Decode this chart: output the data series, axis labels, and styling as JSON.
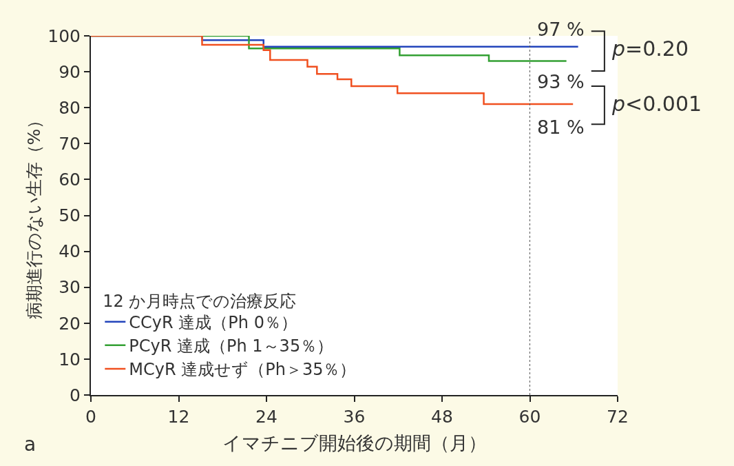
{
  "chart_data": {
    "type": "step",
    "xlabel": "イマチニブ開始後の期間（月）",
    "ylabel": "病期進行のない生存（%）",
    "legend_title": "12 か月時点での治療反応",
    "xlim": [
      0,
      72
    ],
    "xticks": [
      0,
      12,
      24,
      36,
      48,
      60,
      72
    ],
    "ylim": [
      0,
      100
    ],
    "yticks": [
      0,
      10,
      20,
      30,
      40,
      50,
      60,
      70,
      80,
      90,
      100
    ],
    "legend": "bottom left",
    "marker": "none",
    "line_style": "solid",
    "series": [
      {
        "name": "CCyR 達成（Ph 0％）",
        "color": "#2244bb",
        "x": [
          0,
          15.2,
          23.6,
          66.6
        ],
        "values": [
          100,
          98.8,
          97,
          97
        ]
      },
      {
        "name": "PCyR 達成（Ph 1～35％）",
        "color": "#33a033",
        "x": [
          0,
          21.6,
          42.2,
          54.4,
          65
        ],
        "values": [
          100,
          96.5,
          94.6,
          93,
          93
        ]
      },
      {
        "name": "MCyR 達成せず（Ph＞35％）",
        "color": "#f05020",
        "x": [
          0,
          15.2,
          23.6,
          24.5,
          29.6,
          30.9,
          33.7,
          35.6,
          41.9,
          53.7,
          65.9
        ],
        "values": [
          100,
          97.5,
          96,
          93.3,
          91.4,
          89.4,
          87.9,
          86,
          84,
          81,
          81
        ]
      }
    ],
    "ref_lines": [
      {
        "axis": "x",
        "value": 60,
        "color": "#555555",
        "line_style": "dotted"
      }
    ],
    "annotations": [
      "97 %",
      "93 %",
      "81 %",
      "p=0.20",
      "p<0.001",
      "a"
    ]
  }
}
